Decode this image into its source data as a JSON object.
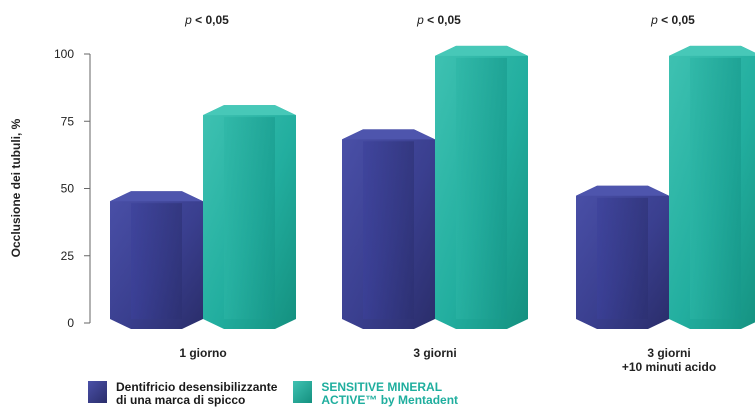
{
  "chart_data": {
    "type": "bar",
    "ylabel": "Occlusione dei tubuli, %",
    "ylim": [
      0,
      100
    ],
    "yticks": [
      0,
      25,
      50,
      75,
      100
    ],
    "categories": [
      "1 giorno",
      "3 giorni",
      "3 giorni\n+10 minuti acido"
    ],
    "significance": [
      "p < 0,05",
      "p < 0,05",
      "p < 0,05"
    ],
    "series": [
      {
        "name": "Dentifricio desensibilizzante\ndi una marca di spicco",
        "values": [
          49,
          72,
          51
        ],
        "color": "#3a3f8f"
      },
      {
        "name": "SENSITIVE MINERAL\nACTIVE™ by Mentadent",
        "values": [
          81,
          103,
          103
        ],
        "color": "#1fae9e"
      }
    ],
    "legend_position": "bottom-left",
    "grid": false
  }
}
